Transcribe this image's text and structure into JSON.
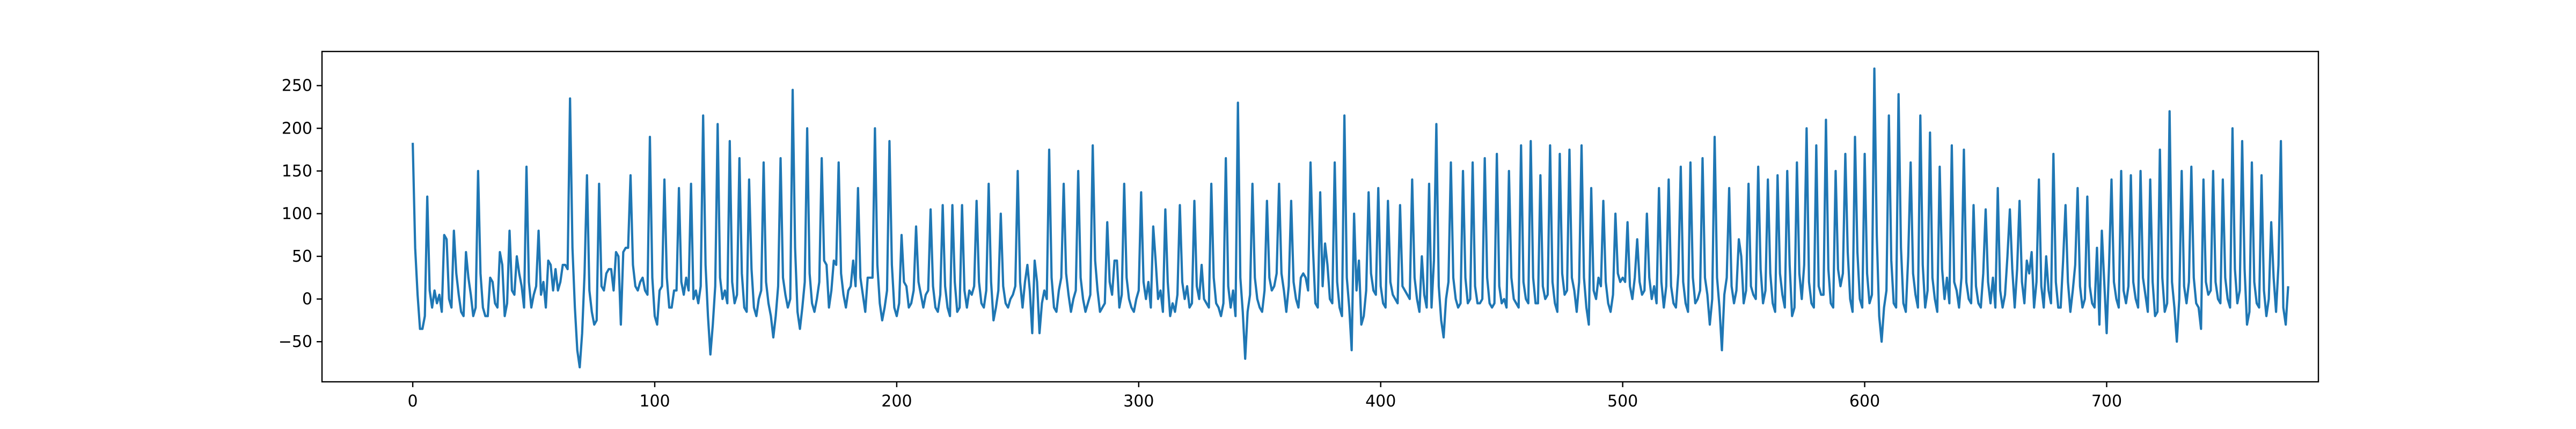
{
  "chart_data": {
    "type": "line",
    "title": "",
    "xlabel": "",
    "ylabel": "",
    "xlim": [
      -37.5,
      787.5
    ],
    "ylim": [
      -97,
      290
    ],
    "grid": false,
    "legend": "none",
    "line_color": "#1f77b4",
    "x_ticks": [
      0,
      100,
      200,
      300,
      400,
      500,
      600,
      700
    ],
    "y_ticks": [
      -50,
      0,
      50,
      100,
      150,
      200,
      250
    ],
    "x_tick_labels": [
      "0",
      "100",
      "200",
      "300",
      "400",
      "500",
      "600",
      "700"
    ],
    "y_tick_labels": [
      "−50",
      "0",
      "50",
      "100",
      "150",
      "200",
      "250"
    ],
    "x_start": 0,
    "x_step": 1,
    "values": [
      183,
      60,
      5,
      -35,
      -35,
      -20,
      120,
      10,
      -10,
      10,
      -5,
      5,
      -15,
      75,
      70,
      0,
      -10,
      80,
      30,
      5,
      -15,
      -20,
      55,
      25,
      5,
      -20,
      -10,
      150,
      30,
      -10,
      -20,
      -20,
      25,
      20,
      -5,
      -10,
      55,
      40,
      -20,
      -5,
      80,
      10,
      5,
      50,
      30,
      15,
      -10,
      155,
      20,
      -10,
      5,
      15,
      80,
      5,
      20,
      -10,
      45,
      40,
      10,
      35,
      10,
      20,
      40,
      40,
      35,
      235,
      60,
      -10,
      -60,
      -80,
      -40,
      30,
      145,
      10,
      -15,
      -30,
      -25,
      135,
      15,
      10,
      30,
      35,
      35,
      10,
      55,
      50,
      -30,
      55,
      60,
      60,
      145,
      40,
      15,
      10,
      20,
      25,
      10,
      5,
      190,
      25,
      -20,
      -30,
      10,
      15,
      140,
      25,
      -10,
      -10,
      10,
      10,
      130,
      20,
      5,
      25,
      10,
      135,
      0,
      10,
      -5,
      15,
      215,
      40,
      -20,
      -65,
      -30,
      15,
      205,
      25,
      0,
      10,
      -5,
      185,
      20,
      -5,
      5,
      165,
      30,
      -10,
      -15,
      140,
      35,
      -10,
      -20,
      0,
      10,
      160,
      20,
      -5,
      -20,
      -45,
      -20,
      15,
      165,
      25,
      5,
      -10,
      0,
      245,
      60,
      -15,
      -35,
      -10,
      20,
      200,
      30,
      -5,
      -15,
      0,
      20,
      165,
      45,
      40,
      -10,
      10,
      45,
      40,
      160,
      30,
      5,
      -10,
      10,
      15,
      45,
      15,
      130,
      25,
      5,
      -15,
      25,
      25,
      25,
      200,
      40,
      -5,
      -25,
      -10,
      10,
      185,
      40,
      -10,
      -20,
      -5,
      75,
      20,
      15,
      -10,
      -5,
      10,
      85,
      20,
      5,
      -10,
      5,
      10,
      105,
      15,
      -10,
      -15,
      5,
      110,
      15,
      -10,
      -20,
      110,
      20,
      -15,
      -10,
      110,
      10,
      -10,
      10,
      5,
      15,
      115,
      20,
      -5,
      -10,
      10,
      135,
      20,
      -25,
      -10,
      10,
      100,
      15,
      -5,
      -10,
      0,
      5,
      15,
      150,
      20,
      -10,
      20,
      40,
      10,
      -40,
      45,
      20,
      -40,
      -5,
      10,
      0,
      175,
      25,
      -10,
      -15,
      10,
      25,
      135,
      30,
      5,
      -15,
      0,
      10,
      150,
      25,
      0,
      -15,
      -5,
      5,
      180,
      45,
      10,
      -15,
      -10,
      -5,
      90,
      20,
      5,
      45,
      45,
      -10,
      5,
      135,
      25,
      0,
      -10,
      -15,
      0,
      10,
      125,
      20,
      0,
      20,
      -10,
      85,
      45,
      0,
      10,
      -15,
      105,
      20,
      -20,
      -5,
      -15,
      5,
      110,
      20,
      0,
      15,
      -10,
      -5,
      115,
      15,
      0,
      40,
      0,
      -5,
      -10,
      135,
      25,
      -5,
      -10,
      -20,
      -5,
      165,
      15,
      -10,
      10,
      -20,
      230,
      25,
      -15,
      -70,
      -15,
      5,
      135,
      25,
      0,
      -10,
      -15,
      10,
      115,
      25,
      10,
      15,
      30,
      135,
      30,
      10,
      -15,
      15,
      115,
      20,
      0,
      -10,
      25,
      30,
      25,
      10,
      160,
      60,
      -5,
      -10,
      125,
      15,
      65,
      40,
      0,
      -5,
      160,
      20,
      -10,
      -20,
      215,
      25,
      -10,
      -60,
      100,
      10,
      45,
      -30,
      -20,
      10,
      125,
      30,
      10,
      5,
      130,
      15,
      -5,
      -10,
      115,
      20,
      5,
      0,
      -5,
      110,
      15,
      10,
      5,
      0,
      140,
      25,
      0,
      -15,
      50,
      5,
      -10,
      135,
      -10,
      45,
      205,
      15,
      -25,
      -45,
      0,
      20,
      160,
      25,
      0,
      -10,
      -5,
      150,
      25,
      -5,
      0,
      160,
      15,
      -5,
      -5,
      0,
      165,
      25,
      -5,
      -10,
      -5,
      170,
      15,
      -5,
      0,
      -10,
      150,
      25,
      0,
      -5,
      -10,
      180,
      20,
      0,
      -5,
      185,
      25,
      -5,
      -5,
      145,
      15,
      0,
      5,
      180,
      20,
      -5,
      -15,
      170,
      30,
      5,
      10,
      175,
      25,
      10,
      -15,
      20,
      180,
      25,
      -10,
      -30,
      130,
      10,
      0,
      25,
      15,
      115,
      20,
      -5,
      -15,
      5,
      100,
      30,
      20,
      25,
      20,
      90,
      15,
      0,
      25,
      70,
      20,
      5,
      10,
      100,
      25,
      0,
      15,
      -5,
      130,
      20,
      -10,
      15,
      140,
      15,
      -5,
      -10,
      30,
      155,
      20,
      -5,
      -15,
      160,
      25,
      -5,
      0,
      10,
      165,
      25,
      5,
      -30,
      0,
      190,
      25,
      -10,
      -60,
      5,
      25,
      130,
      15,
      -5,
      10,
      70,
      50,
      -5,
      10,
      135,
      15,
      5,
      0,
      155,
      35,
      -5,
      10,
      140,
      30,
      -5,
      -15,
      145,
      30,
      5,
      -10,
      150,
      40,
      -20,
      -10,
      160,
      30,
      0,
      40,
      200,
      20,
      -5,
      -10,
      180,
      15,
      5,
      5,
      210,
      35,
      -5,
      -10,
      150,
      35,
      15,
      30,
      170,
      55,
      0,
      -15,
      190,
      55,
      0,
      -10,
      170,
      30,
      -5,
      5,
      270,
      75,
      -20,
      -50,
      -10,
      10,
      215,
      45,
      -5,
      -10,
      240,
      60,
      -5,
      -15,
      50,
      160,
      30,
      5,
      -10,
      215,
      40,
      -10,
      10,
      195,
      25,
      0,
      -15,
      155,
      35,
      0,
      25,
      -5,
      180,
      20,
      10,
      -10,
      25,
      175,
      20,
      0,
      -5,
      110,
      15,
      -5,
      -10,
      30,
      105,
      20,
      -5,
      25,
      -10,
      130,
      10,
      -10,
      5,
      50,
      105,
      35,
      -10,
      35,
      115,
      20,
      -5,
      45,
      30,
      55,
      -10,
      20,
      140,
      15,
      -10,
      50,
      10,
      -5,
      170,
      20,
      -10,
      -10,
      45,
      110,
      20,
      -15,
      10,
      40,
      130,
      15,
      -10,
      0,
      120,
      15,
      -5,
      -10,
      60,
      -30,
      80,
      20,
      -40,
      40,
      140,
      20,
      0,
      -10,
      150,
      10,
      -5,
      15,
      145,
      20,
      0,
      -10,
      150,
      25,
      5,
      -15,
      140,
      20,
      -20,
      -15,
      175,
      25,
      -15,
      -5,
      220,
      20,
      -10,
      -50,
      0,
      150,
      15,
      -5,
      20,
      155,
      25,
      -5,
      -10,
      -35,
      140,
      20,
      5,
      10,
      150,
      20,
      0,
      -5,
      140,
      25,
      0,
      -10,
      200,
      35,
      -5,
      10,
      185,
      35,
      -30,
      -15,
      160,
      20,
      -5,
      -10,
      145,
      10,
      -20,
      0,
      90,
      25,
      -15,
      40,
      185,
      -10,
      -30,
      15
    ]
  }
}
